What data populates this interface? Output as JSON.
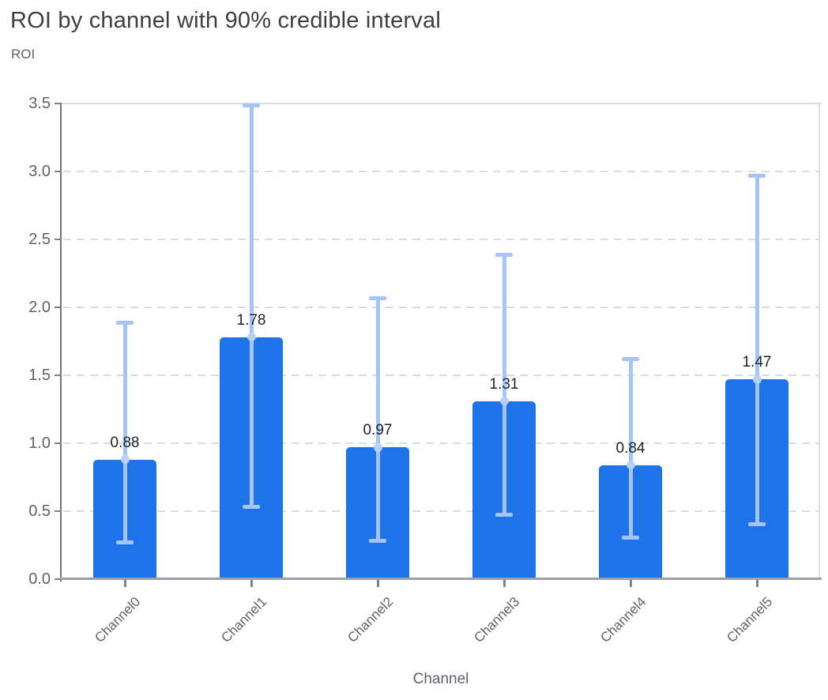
{
  "title": "ROI by channel with 90% credible interval",
  "y_axis_title": "ROI",
  "x_axis_title": "Channel",
  "colors": {
    "bar": "#1e73e8",
    "error_bar": "#a6c4f9",
    "error_marker": "#bad1fb",
    "title_text": "#3c4043",
    "axis_title_text": "#5f6368",
    "tick_label_text": "#5f6368",
    "value_label_text": "#1f2125",
    "gridline": "#d9dce0",
    "plot_border": "#d9dce0",
    "y_axis_line": "#6f7479",
    "x_axis_line": "#9aa0a6",
    "tick_mark": "#7d8287",
    "background": "#ffffff"
  },
  "chart_data": {
    "type": "bar",
    "title": "ROI by channel with 90% credible interval",
    "xlabel": "Channel",
    "ylabel": "ROI",
    "categories": [
      "Channel0",
      "Channel1",
      "Channel2",
      "Channel3",
      "Channel4",
      "Channel5"
    ],
    "values": [
      0.88,
      1.78,
      0.97,
      1.31,
      0.84,
      1.47
    ],
    "value_labels": [
      "0.88",
      "1.78",
      "0.97",
      "1.31",
      "0.84",
      "1.47"
    ],
    "error_low": [
      0.27,
      0.53,
      0.28,
      0.47,
      0.3,
      0.4
    ],
    "error_high": [
      1.89,
      3.49,
      2.07,
      2.39,
      1.62,
      2.97
    ],
    "error_meaning": "90% credible interval",
    "ylim": [
      0,
      3.5
    ],
    "ytick_labels": [
      "0.0",
      "0.5",
      "1.0",
      "1.5",
      "2.0",
      "2.5",
      "3.0",
      "3.5"
    ],
    "grid": "horizontal-dashed",
    "legend": "none"
  }
}
